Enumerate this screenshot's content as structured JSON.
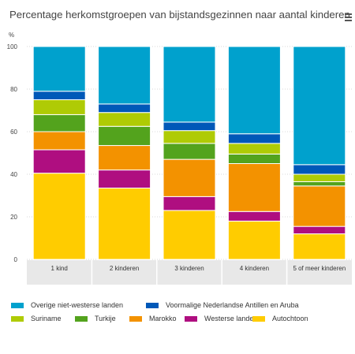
{
  "title": "Percentage herkomstgroepen van bijstandsgezinnen naar aantal kinderen",
  "menu_icon": "hamburger-menu-icon",
  "chart_data": {
    "type": "bar",
    "stacked": true,
    "ylabel": "%",
    "ylim": [
      0,
      100
    ],
    "yticks": [
      0,
      20,
      40,
      60,
      80,
      100
    ],
    "grid": true,
    "categories": [
      "1 kind",
      "2 kinderen",
      "3 kinderen",
      "4 kinderen",
      "5 of meer kinderen"
    ],
    "series": [
      {
        "name": "Autochtoon",
        "color": "#ffcc00",
        "values": [
          40.5,
          33.5,
          23.0,
          18.0,
          12.0
        ]
      },
      {
        "name": "Westerse landen",
        "color": "#af0e80",
        "values": [
          11.0,
          8.5,
          6.5,
          4.5,
          3.5
        ]
      },
      {
        "name": "Marokko",
        "color": "#f39200",
        "values": [
          8.5,
          11.5,
          17.5,
          22.5,
          19.0
        ]
      },
      {
        "name": "Turkije",
        "color": "#53a31d",
        "values": [
          8.0,
          9.0,
          7.5,
          4.5,
          2.0
        ]
      },
      {
        "name": "Suriname",
        "color": "#afcb05",
        "values": [
          7.0,
          6.5,
          6.0,
          5.0,
          3.5
        ]
      },
      {
        "name": "Voormalige Nederlandse Antillen en Aruba",
        "color": "#0058b8",
        "values": [
          4.0,
          4.0,
          4.0,
          4.5,
          4.5
        ]
      },
      {
        "name": "Overige niet-westerse landen",
        "color": "#00a1cd",
        "values": [
          21.0,
          27.0,
          35.5,
          41.0,
          55.5
        ]
      }
    ],
    "legend": {
      "placement": "bottom",
      "order": [
        "Overige niet-westerse landen",
        "Voormalige Nederlandse Antillen en Aruba",
        "Suriname",
        "Turkije",
        "Marokko",
        "Westerse landen",
        "Autochtoon"
      ]
    }
  }
}
